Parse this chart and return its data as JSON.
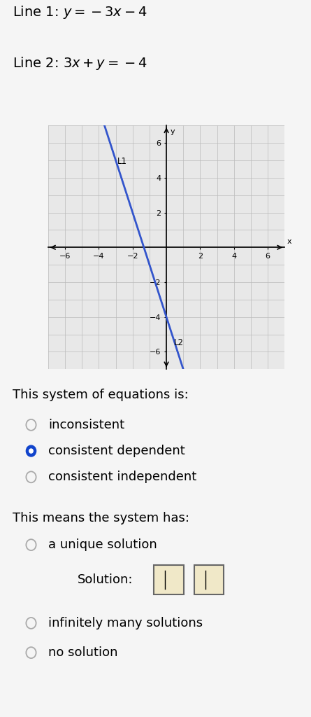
{
  "line1_label_plain": "Line 1: ",
  "line1_math": "$y=-3x-4$",
  "line2_label_plain": "Line 2: ",
  "line2_math": "$3x+y=-4$",
  "line1_slope": -3,
  "line1_intercept": -4,
  "line2_slope": -3,
  "line2_intercept": -4,
  "xmin": -7,
  "xmax": 7,
  "ymin": -7,
  "ymax": 7,
  "tick_values": [
    -6,
    -4,
    -2,
    2,
    4,
    6
  ],
  "line_color": "#3355cc",
  "line_width": 2.0,
  "grid_color": "#bbbbbb",
  "axis_color": "#000000",
  "bg_color": "#f5f5f5",
  "plot_bg": "#e8e8e8",
  "label_L1": "L1",
  "label_L2": "L2",
  "system_label": "This system of equations is:",
  "options_system": [
    "inconsistent",
    "consistent dependent",
    "consistent independent"
  ],
  "selected_system": 1,
  "means_label": "This means the system has:",
  "options_means_top": "a unique solution",
  "solution_label": "Solution:",
  "options_means_bottom": [
    "infinitely many solutions",
    "no solution"
  ],
  "font_size_heading": 14,
  "font_size_text": 13,
  "font_size_axis": 8,
  "radio_selected_color": "#1144cc",
  "radio_empty_color": "#aaaaaa",
  "radio_border_color": "#666666"
}
